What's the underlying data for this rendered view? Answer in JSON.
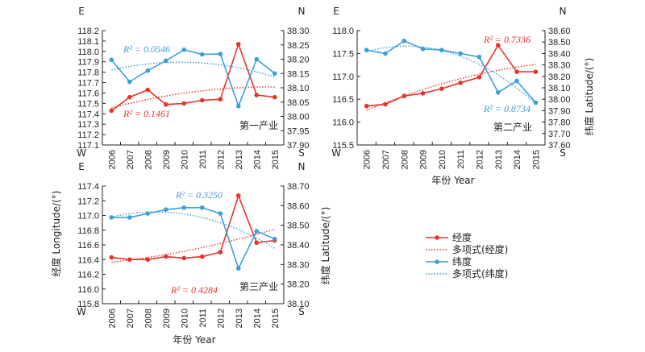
{
  "colors": {
    "longitude": "#e8332a",
    "latitude": "#3b9fd8",
    "axis": "#222222"
  },
  "legend": {
    "items": [
      {
        "label": "经度",
        "kind": "line",
        "series": "longitude"
      },
      {
        "label": "多项式(经度)",
        "kind": "dotted",
        "series": "longitude"
      },
      {
        "label": "纬度",
        "kind": "line",
        "series": "latitude"
      },
      {
        "label": "多项式(纬度)",
        "kind": "dotted",
        "series": "latitude"
      }
    ]
  },
  "shared": {
    "ylabel_left": "经度 Longitude/(°)",
    "ylabel_right": "纬度 Latitude/(°)",
    "xlabel": "年份 Year"
  },
  "chart_data": [
    {
      "type": "line",
      "title": "第一产业",
      "x": [
        "2006",
        "2007",
        "2008",
        "2009",
        "2010",
        "2011",
        "2012",
        "2013",
        "2014",
        "2015"
      ],
      "left_axis": {
        "top_label": "E",
        "bottom_label": "W",
        "ylim": [
          117.1,
          118.2
        ],
        "ticks": [
          "117.1",
          "117.2",
          "117.3",
          "117.4",
          "117.5",
          "117.6",
          "117.7",
          "117.8",
          "117.9",
          "118.0",
          "118.1",
          "118.2"
        ]
      },
      "right_axis": {
        "top_label": "N",
        "bottom_label": "S",
        "ylim": [
          37.9,
          38.3
        ],
        "ticks": [
          "37.90",
          "37.95",
          "38.00",
          "38.05",
          "38.10",
          "38.15",
          "38.20",
          "38.25",
          "38.30"
        ]
      },
      "series": [
        {
          "name": "经度",
          "axis": "left",
          "values": [
            117.43,
            117.56,
            117.63,
            117.49,
            117.5,
            117.53,
            117.54,
            118.07,
            117.58,
            117.56
          ],
          "trend_r2": "R² = 0.1461"
        },
        {
          "name": "纬度",
          "axis": "right",
          "values": [
            38.198,
            38.121,
            38.16,
            38.195,
            38.233,
            38.217,
            38.218,
            38.036,
            38.2,
            38.15
          ],
          "trend_r2": "R² = 0.0546"
        }
      ]
    },
    {
      "type": "line",
      "title": "第二产业",
      "x": [
        "2006",
        "2007",
        "2008",
        "2009",
        "2010",
        "2011",
        "2012",
        "2013",
        "2014",
        "2015"
      ],
      "left_axis": {
        "top_label": "E",
        "bottom_label": "W",
        "ylim": [
          115.5,
          118.0
        ],
        "ticks": [
          "115.5",
          "116.0",
          "116.5",
          "117.0",
          "117.5",
          "118.0"
        ]
      },
      "right_axis": {
        "top_label": "N",
        "bottom_label": "S",
        "ylim": [
          37.6,
          38.6
        ],
        "ticks": [
          "37.60",
          "37.70",
          "37.80",
          "37.90",
          "38.00",
          "38.10",
          "38.20",
          "38.30",
          "38.40",
          "38.50",
          "38.60"
        ]
      },
      "series": [
        {
          "name": "经度",
          "axis": "left",
          "values": [
            116.35,
            116.39,
            116.57,
            116.63,
            116.73,
            116.86,
            116.98,
            117.68,
            117.1,
            117.1
          ],
          "trend_r2": "R² = 0.7336"
        },
        {
          "name": "纬度",
          "axis": "right",
          "values": [
            38.43,
            38.4,
            38.51,
            38.44,
            38.43,
            38.4,
            38.37,
            38.06,
            38.16,
            37.97
          ],
          "trend_r2": "R² = 0.8734"
        }
      ]
    },
    {
      "type": "line",
      "title": "第三产业",
      "x": [
        "2006",
        "2007",
        "2008",
        "2009",
        "2010",
        "2011",
        "2012",
        "2013",
        "2014",
        "2015"
      ],
      "left_axis": {
        "top_label": "E",
        "bottom_label": "W",
        "ylim": [
          115.8,
          117.4
        ],
        "ticks": [
          "115.8",
          "116.0",
          "116.2",
          "116.4",
          "116.6",
          "116.8",
          "117.0",
          "117.2",
          "117.4"
        ]
      },
      "right_axis": {
        "top_label": "N",
        "bottom_label": "S",
        "ylim": [
          38.1,
          38.7
        ],
        "ticks": [
          "38.10",
          "38.20",
          "38.30",
          "38.40",
          "38.50",
          "38.60",
          "38.70"
        ]
      },
      "series": [
        {
          "name": "经度",
          "axis": "left",
          "values": [
            116.43,
            116.4,
            116.4,
            116.44,
            116.42,
            116.44,
            116.5,
            117.27,
            116.63,
            116.66
          ],
          "trend_r2": "R² = 0.4284"
        },
        {
          "name": "纬度",
          "axis": "right",
          "values": [
            38.54,
            38.54,
            38.56,
            38.58,
            38.59,
            38.59,
            38.56,
            38.28,
            38.47,
            38.43
          ],
          "trend_r2": "R² = 0.3250"
        }
      ]
    }
  ]
}
